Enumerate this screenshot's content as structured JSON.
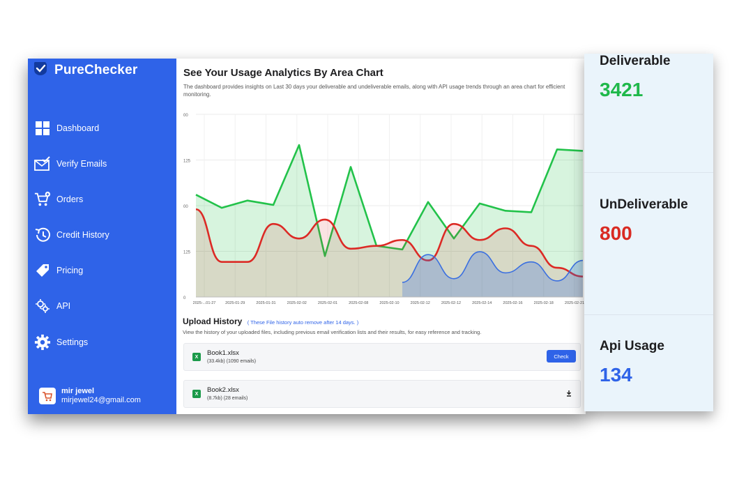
{
  "brand": {
    "name": "PureChecker"
  },
  "sidebar": {
    "items": [
      {
        "label": "Dashboard",
        "icon": "grid-icon"
      },
      {
        "label": "Verify Emails",
        "icon": "mail-check-icon"
      },
      {
        "label": "Orders",
        "icon": "cart-icon"
      },
      {
        "label": "Credit History",
        "icon": "history-icon"
      },
      {
        "label": "Pricing",
        "icon": "tag-icon"
      },
      {
        "label": "API",
        "icon": "api-icon"
      },
      {
        "label": "Settings",
        "icon": "gear-icon"
      }
    ],
    "user": {
      "name": "mir jewel",
      "email": "mirjewel24@gmail.com"
    }
  },
  "main": {
    "title": "See Your Usage Analytics By Area Chart",
    "subtitle": "The dashboard provides insights on Last 30 days your deliverable and undeliverable emails, along with API usage trends through an area chart for efficient monitoring."
  },
  "chart_data": {
    "type": "area",
    "y_ticks": [
      "00",
      "125",
      "00",
      "125",
      "0"
    ],
    "x_ticks": [
      "2025-...01-27",
      "2025-01-29",
      "2025-01-31",
      "2025-02-02",
      "2025-02-01",
      "2025-02-08",
      "2025-02-10",
      "2025-02-12",
      "2025-02-12",
      "2025-02-14",
      "2025-02-16",
      "2025-02-18",
      "2025-02-21"
    ],
    "ylim": [
      0,
      250
    ],
    "colors": {
      "deliverable": "#22c24a",
      "undeliverable": "#dc2a25",
      "api": "#3a6fe0"
    },
    "series": [
      {
        "key": "deliverable",
        "values": [
          140,
          122,
          132,
          126,
          208,
          56,
          178,
          70,
          65,
          130,
          80,
          128,
          118,
          116,
          202,
          200
        ]
      },
      {
        "key": "undeliverable",
        "values": [
          120,
          48,
          48,
          100,
          80,
          106,
          66,
          70,
          78,
          50,
          100,
          78,
          94,
          70,
          40,
          28
        ]
      },
      {
        "key": "api",
        "values": [
          null,
          null,
          null,
          null,
          null,
          null,
          null,
          null,
          20,
          58,
          25,
          62,
          33,
          48,
          22,
          50
        ]
      }
    ]
  },
  "upload": {
    "title": "Upload History",
    "note": "( These File history auto remove after 14 days. )",
    "description": "View the history of your uploaded files, including previous email verification lists and their results, for easy reference and tracking.",
    "files": [
      {
        "name": "Book1.xlsx",
        "meta": "(33.4kb)  (1090 emails)",
        "action": "Check"
      },
      {
        "name": "Book2.xlsx",
        "meta": "(8.7kb)  (28 emails)",
        "action_icon": "download-icon"
      }
    ]
  },
  "stats": [
    {
      "label": "Deliverable",
      "value": "3421",
      "color": "#1fb84a"
    },
    {
      "label": "UnDeliverable",
      "value": "800",
      "color": "#d92a22"
    },
    {
      "label": "Api Usage",
      "value": "134",
      "color": "#2f63e8"
    }
  ]
}
